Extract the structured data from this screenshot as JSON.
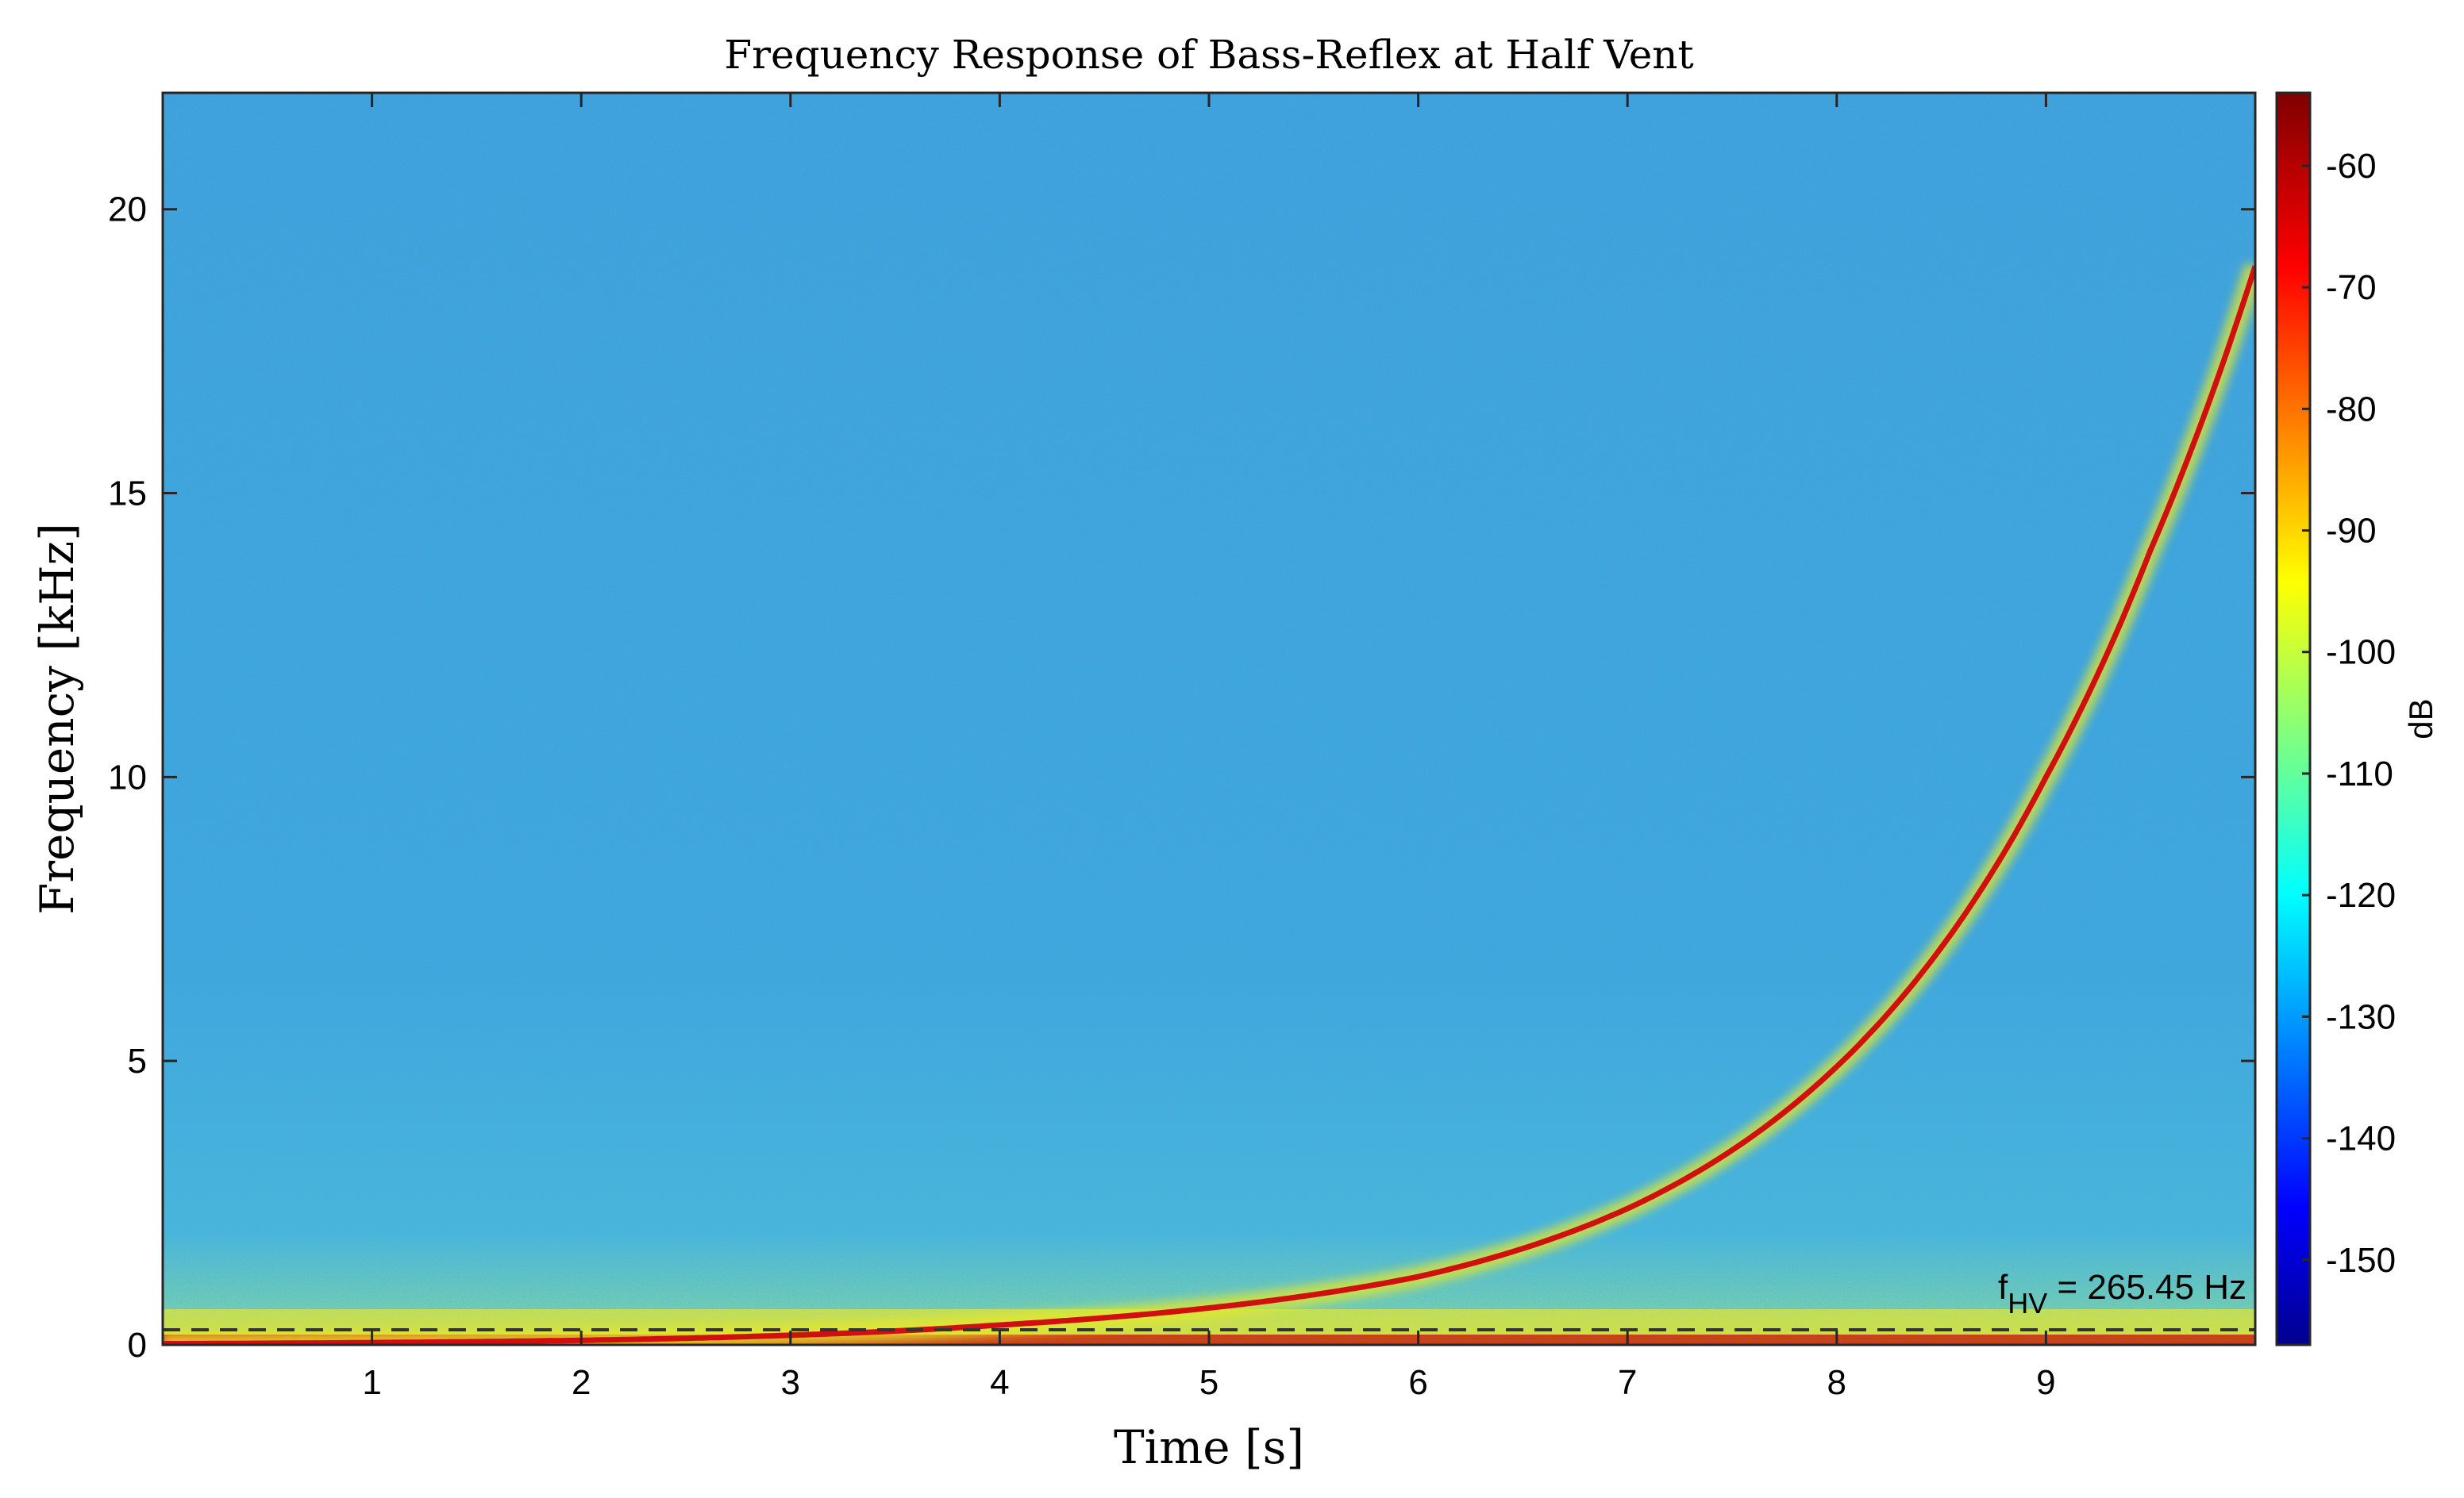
{
  "chart_data": {
    "type": "heatmap",
    "title": "Frequency Response of Bass-Reflex at Half Vent",
    "xlabel": "Time [s]",
    "ylabel": "Frequency [kHz]",
    "xlim": [
      0,
      10
    ],
    "ylim": [
      0,
      22.05
    ],
    "x_ticks": [
      1,
      2,
      3,
      4,
      5,
      6,
      7,
      8,
      9
    ],
    "y_ticks": [
      0,
      5,
      10,
      15,
      20
    ],
    "colorbar": {
      "label": "dB",
      "range": [
        -157,
        -54
      ],
      "ticks": [
        -60,
        -70,
        -80,
        -90,
        -100,
        -110,
        -120,
        -130,
        -140,
        -150
      ],
      "colormap": "jet"
    },
    "sweep": {
      "description_points_t_s": [
        0,
        1,
        2,
        3,
        4,
        5,
        6,
        7,
        8,
        9,
        9.5,
        10
      ],
      "frequency_khz": [
        0.02,
        0.04,
        0.08,
        0.17,
        0.35,
        0.65,
        1.2,
        2.4,
        4.9,
        10.0,
        14.0,
        19.0
      ]
    },
    "annotation": {
      "text_main": "f",
      "text_sub": "HV",
      "text_rest": " = 265.45 Hz",
      "value_khz": 0.26545
    },
    "grid": false
  }
}
